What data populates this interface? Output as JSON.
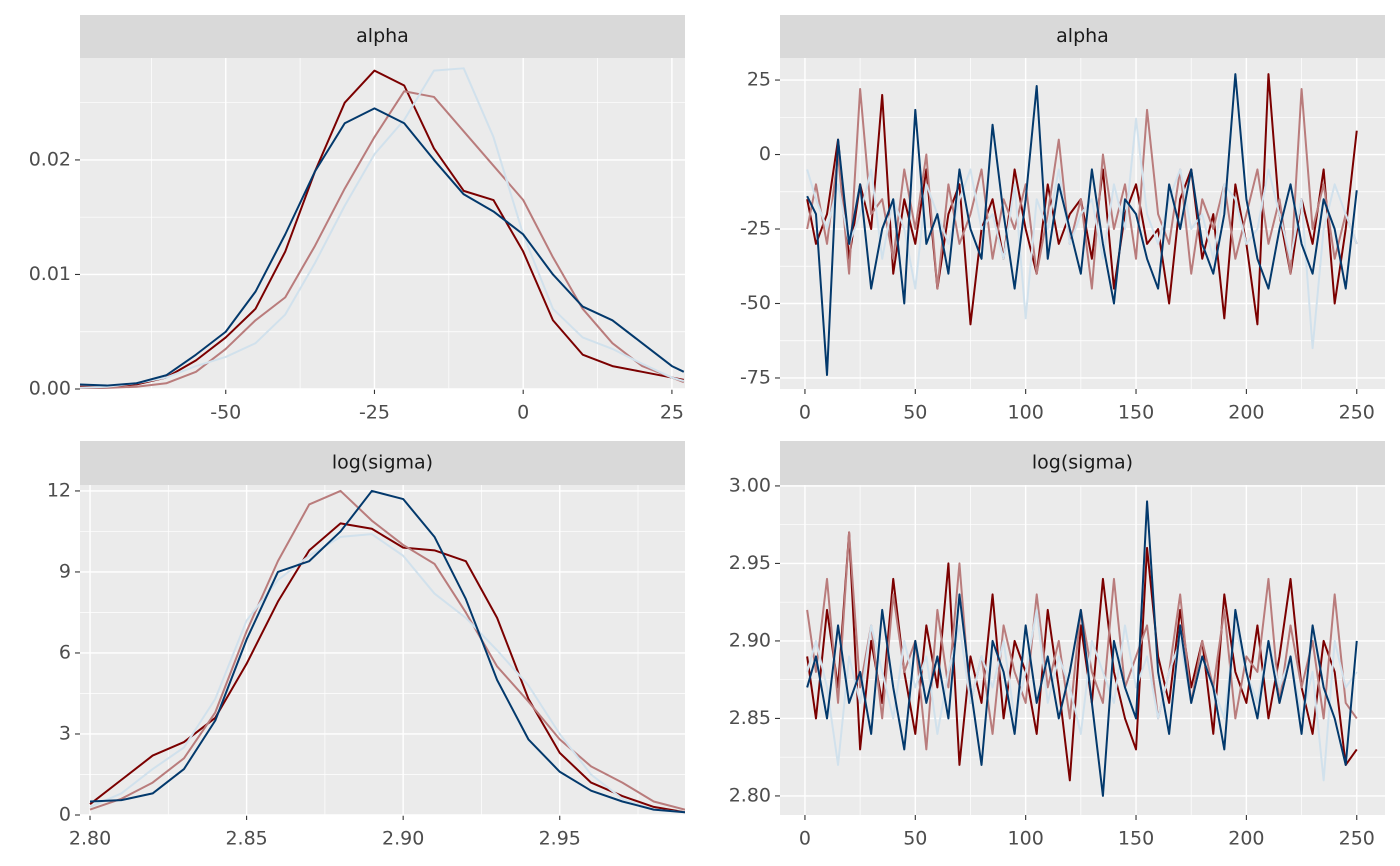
{
  "chart_data": [
    {
      "type": "line",
      "title": "alpha",
      "x": [
        -75,
        -70,
        -65,
        -60,
        -55,
        -50,
        -45,
        -40,
        -35,
        -30,
        -25,
        -20,
        -15,
        -10,
        -5,
        0,
        5,
        10,
        15,
        20,
        25,
        27
      ],
      "series": [
        {
          "color": "#7b0000",
          "values": [
            0.0002,
            0.0002,
            0.0004,
            0.001,
            0.0025,
            0.0045,
            0.007,
            0.012,
            0.019,
            0.025,
            0.0278,
            0.0265,
            0.021,
            0.0173,
            0.0165,
            0.012,
            0.006,
            0.003,
            0.002,
            0.0015,
            0.001,
            0.0008
          ]
        },
        {
          "color": "#b97c7c",
          "values": [
            0.0,
            0.0001,
            0.0002,
            0.0005,
            0.0015,
            0.0035,
            0.006,
            0.008,
            0.0125,
            0.0175,
            0.022,
            0.026,
            0.0255,
            0.0225,
            0.0195,
            0.0165,
            0.0115,
            0.007,
            0.004,
            0.002,
            0.001,
            0.0006
          ]
        },
        {
          "color": "#d1e1ec",
          "values": [
            0.0001,
            0.0002,
            0.0005,
            0.001,
            0.002,
            0.0028,
            0.004,
            0.0065,
            0.011,
            0.016,
            0.0205,
            0.0235,
            0.0278,
            0.028,
            0.022,
            0.0135,
            0.007,
            0.0045,
            0.0035,
            0.0022,
            0.001,
            0.0007
          ]
        },
        {
          "color": "#03396c",
          "values": [
            0.0004,
            0.0003,
            0.0005,
            0.0012,
            0.003,
            0.005,
            0.0085,
            0.0135,
            0.019,
            0.0232,
            0.0245,
            0.0232,
            0.02,
            0.017,
            0.0155,
            0.0135,
            0.01,
            0.0072,
            0.006,
            0.004,
            0.002,
            0.0015
          ]
        }
      ],
      "xlim": [
        -74.5,
        27.2
      ],
      "ylim": [
        0,
        0.0289
      ],
      "xticks": [
        -50,
        -25,
        0,
        25
      ],
      "yticks": [
        {
          "value": 0,
          "label": "0.00"
        },
        0.01,
        0.02
      ],
      "grid": true
    },
    {
      "type": "line",
      "title": "alpha",
      "x": [
        1,
        5,
        10,
        15,
        20,
        25,
        30,
        35,
        40,
        45,
        50,
        55,
        60,
        65,
        70,
        75,
        80,
        85,
        90,
        95,
        100,
        105,
        110,
        115,
        120,
        125,
        130,
        135,
        140,
        145,
        150,
        155,
        160,
        165,
        170,
        175,
        180,
        185,
        190,
        195,
        200,
        205,
        210,
        215,
        220,
        225,
        230,
        235,
        240,
        245,
        250
      ],
      "series": [
        {
          "color": "#7b0000",
          "values": [
            -15,
            -30,
            -20,
            5,
            -35,
            -10,
            -25,
            20,
            -40,
            -15,
            -30,
            -5,
            -45,
            -20,
            -10,
            -57,
            -25,
            -15,
            -35,
            -5,
            -25,
            -40,
            -10,
            -30,
            -20,
            -15,
            -35,
            -5,
            -45,
            -20,
            -10,
            -30,
            -25,
            -50,
            -15,
            -5,
            -35,
            -20,
            -55,
            -10,
            -30,
            -57,
            27,
            -20,
            -40,
            -15,
            -30,
            -5,
            -50,
            -25,
            8
          ]
        },
        {
          "color": "#b97c7c",
          "values": [
            -25,
            -10,
            -30,
            0,
            -40,
            22,
            -20,
            -15,
            -35,
            -5,
            -25,
            0,
            -45,
            -10,
            -30,
            -20,
            -5,
            -35,
            -15,
            -25,
            -10,
            -40,
            -20,
            5,
            -30,
            -15,
            -45,
            0,
            -25,
            -10,
            -35,
            15,
            -20,
            -30,
            -5,
            -40,
            -15,
            -25,
            -10,
            -35,
            -20,
            -5,
            -30,
            -15,
            -40,
            22,
            -25,
            -10,
            -35,
            -20,
            -30
          ]
        },
        {
          "color": "#d1e1ec",
          "values": [
            -5,
            -15,
            -25,
            -10,
            -30,
            -20,
            -5,
            -35,
            -15,
            -25,
            -45,
            -10,
            -20,
            -30,
            -15,
            -5,
            -25,
            -20,
            -35,
            -10,
            -55,
            -15,
            -25,
            -5,
            -30,
            -20,
            -15,
            -35,
            -10,
            -25,
            12,
            -20,
            -30,
            -15,
            -5,
            -25,
            -20,
            -35,
            -10,
            -15,
            -30,
            -25,
            -5,
            -20,
            -35,
            -15,
            -65,
            -25,
            -10,
            -20,
            -30
          ]
        },
        {
          "color": "#03396c",
          "values": [
            -14,
            -20,
            -74,
            5,
            -30,
            -10,
            -45,
            -25,
            -15,
            -50,
            15,
            -30,
            -20,
            -40,
            -5,
            -25,
            -35,
            10,
            -20,
            -45,
            -15,
            23,
            -35,
            -10,
            -25,
            -40,
            -5,
            -30,
            -50,
            -15,
            -20,
            -35,
            -45,
            -10,
            -25,
            -5,
            -30,
            -40,
            -20,
            27,
            -15,
            -35,
            -45,
            -25,
            -10,
            -30,
            -40,
            -15,
            -25,
            -45,
            -12
          ]
        }
      ],
      "xlim": [
        -11.3,
        262.8
      ],
      "ylim": [
        -78.7,
        32.4
      ],
      "xticks": [
        0,
        50,
        100,
        150,
        200,
        250
      ],
      "yticks": [
        -75,
        -50,
        -25,
        0,
        25
      ],
      "grid": true
    },
    {
      "type": "line",
      "title": "log(sigma)",
      "x": [
        2.8,
        2.81,
        2.82,
        2.83,
        2.84,
        2.85,
        2.86,
        2.87,
        2.88,
        2.89,
        2.9,
        2.91,
        2.92,
        2.93,
        2.94,
        2.95,
        2.96,
        2.97,
        2.98,
        2.99
      ],
      "series": [
        {
          "color": "#7b0000",
          "values": [
            0.4,
            1.3,
            2.2,
            2.7,
            3.6,
            5.6,
            7.9,
            9.8,
            10.8,
            10.6,
            9.9,
            9.8,
            9.4,
            7.3,
            4.3,
            2.3,
            1.2,
            0.7,
            0.3,
            0.1
          ]
        },
        {
          "color": "#b97c7c",
          "values": [
            0.2,
            0.6,
            1.2,
            2.1,
            3.8,
            6.8,
            9.4,
            11.5,
            12.0,
            10.9,
            10.0,
            9.3,
            7.5,
            5.5,
            4.2,
            2.8,
            1.8,
            1.2,
            0.5,
            0.2
          ]
        },
        {
          "color": "#d1e1ec",
          "values": [
            0.3,
            0.8,
            1.7,
            2.5,
            4.3,
            7.2,
            8.7,
            9.6,
            10.3,
            10.4,
            9.6,
            8.2,
            7.3,
            6.1,
            4.8,
            3.0,
            1.5,
            0.6,
            0.2,
            0.1
          ]
        },
        {
          "color": "#03396c",
          "values": [
            0.5,
            0.55,
            0.8,
            1.7,
            3.5,
            6.5,
            9.0,
            9.4,
            10.5,
            12.0,
            11.7,
            10.3,
            8.0,
            5.0,
            2.8,
            1.6,
            0.9,
            0.5,
            0.2,
            0.1
          ]
        }
      ],
      "xlim": [
        2.7968,
        2.99
      ],
      "ylim": [
        0,
        12.22
      ],
      "xticks": [
        {
          "value": 2.8,
          "label": "2.80"
        },
        2.85,
        {
          "value": 2.9,
          "label": "2.90"
        },
        2.95
      ],
      "yticks": [
        0,
        3,
        6,
        9,
        12
      ],
      "grid": true
    },
    {
      "type": "line",
      "title": "log(sigma)",
      "x": [
        1,
        5,
        10,
        15,
        20,
        25,
        30,
        35,
        40,
        45,
        50,
        55,
        60,
        65,
        70,
        75,
        80,
        85,
        90,
        95,
        100,
        105,
        110,
        115,
        120,
        125,
        130,
        135,
        140,
        145,
        150,
        155,
        160,
        165,
        170,
        175,
        180,
        185,
        190,
        195,
        200,
        205,
        210,
        215,
        220,
        225,
        230,
        235,
        240,
        245,
        250
      ],
      "series": [
        {
          "color": "#7b0000",
          "values": [
            2.89,
            2.85,
            2.92,
            2.87,
            2.97,
            2.83,
            2.9,
            2.86,
            2.94,
            2.88,
            2.84,
            2.91,
            2.87,
            2.95,
            2.82,
            2.89,
            2.86,
            2.93,
            2.85,
            2.9,
            2.88,
            2.84,
            2.92,
            2.87,
            2.81,
            2.91,
            2.86,
            2.94,
            2.88,
            2.85,
            2.83,
            2.96,
            2.89,
            2.86,
            2.92,
            2.87,
            2.9,
            2.84,
            2.93,
            2.88,
            2.86,
            2.91,
            2.85,
            2.89,
            2.94,
            2.87,
            2.84,
            2.9,
            2.88,
            2.82,
            2.83
          ]
        },
        {
          "color": "#b97c7c",
          "values": [
            2.92,
            2.88,
            2.94,
            2.86,
            2.97,
            2.87,
            2.91,
            2.85,
            2.93,
            2.88,
            2.9,
            2.83,
            2.92,
            2.87,
            2.95,
            2.86,
            2.89,
            2.84,
            2.91,
            2.88,
            2.86,
            2.93,
            2.87,
            2.9,
            2.85,
            2.92,
            2.88,
            2.86,
            2.94,
            2.87,
            2.89,
            2.91,
            2.85,
            2.88,
            2.93,
            2.86,
            2.9,
            2.87,
            2.92,
            2.85,
            2.89,
            2.88,
            2.94,
            2.86,
            2.91,
            2.87,
            2.9,
            2.85,
            2.93,
            2.86,
            2.85
          ]
        },
        {
          "color": "#d1e1ec",
          "values": [
            2.88,
            2.9,
            2.87,
            2.82,
            2.89,
            2.86,
            2.91,
            2.88,
            2.85,
            2.9,
            2.87,
            2.89,
            2.84,
            2.88,
            2.91,
            2.86,
            2.89,
            2.87,
            2.9,
            2.85,
            2.88,
            2.92,
            2.86,
            2.89,
            2.87,
            2.84,
            2.9,
            2.88,
            2.86,
            2.91,
            2.87,
            2.89,
            2.85,
            2.88,
            2.9,
            2.86,
            2.89,
            2.87,
            2.85,
            2.91,
            2.88,
            2.86,
            2.9,
            2.87,
            2.89,
            2.85,
            2.88,
            2.81,
            2.9,
            2.87,
            2.88
          ]
        },
        {
          "color": "#03396c",
          "values": [
            2.87,
            2.89,
            2.85,
            2.91,
            2.86,
            2.88,
            2.84,
            2.92,
            2.87,
            2.83,
            2.9,
            2.86,
            2.89,
            2.85,
            2.93,
            2.87,
            2.82,
            2.9,
            2.88,
            2.84,
            2.91,
            2.86,
            2.89,
            2.85,
            2.88,
            2.92,
            2.86,
            2.8,
            2.9,
            2.87,
            2.85,
            2.99,
            2.88,
            2.84,
            2.91,
            2.86,
            2.89,
            2.87,
            2.83,
            2.92,
            2.88,
            2.85,
            2.9,
            2.86,
            2.89,
            2.84,
            2.91,
            2.87,
            2.85,
            2.82,
            2.9
          ]
        }
      ],
      "xlim": [
        -11.3,
        262.8
      ],
      "ylim": [
        2.7877,
        3.0006
      ],
      "xticks": [
        0,
        50,
        100,
        150,
        200,
        250
      ],
      "yticks": [
        {
          "value": 2.8,
          "label": "2.80"
        },
        2.85,
        {
          "value": 2.9,
          "label": "2.90"
        },
        2.95,
        {
          "value": 3.0,
          "label": "3.00"
        }
      ],
      "grid": true
    }
  ]
}
